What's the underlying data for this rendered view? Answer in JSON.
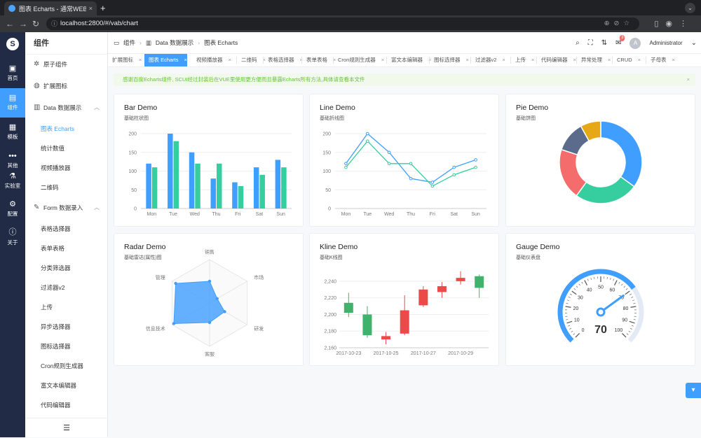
{
  "browser": {
    "tab_title": "图表 Echarts - 通常WEB管理",
    "tab_close": "×",
    "new_tab": "+",
    "url": "localhost:2800/#/vab/chart",
    "lock_icon": "site-info-icon"
  },
  "rail": {
    "logo": "S",
    "items": [
      {
        "label": "首页",
        "icon": "home-icon",
        "glyph": "▣"
      },
      {
        "label": "组件",
        "icon": "component-icon",
        "glyph": "▤"
      },
      {
        "label": "模板",
        "icon": "template-icon",
        "glyph": "▦"
      },
      {
        "label": "其他",
        "icon": "more-icon",
        "glyph": "•••"
      },
      {
        "label": "实验室",
        "icon": "lab-icon",
        "glyph": "⚗"
      },
      {
        "label": "配置",
        "icon": "settings-icon",
        "glyph": "⚙"
      },
      {
        "label": "关于",
        "icon": "info-icon",
        "glyph": "ⓘ"
      }
    ]
  },
  "sidebar": {
    "title": "组件",
    "items": [
      {
        "label": "原子组件",
        "glyph": "✲"
      },
      {
        "label": "扩展图标",
        "glyph": "◍"
      },
      {
        "label": "Data 数据展示",
        "glyph": "▥",
        "arrow": "︿"
      },
      {
        "label": "图表 Echarts"
      },
      {
        "label": "统计数值"
      },
      {
        "label": "视频播放器"
      },
      {
        "label": "二维码"
      },
      {
        "label": "Form 数据录入",
        "glyph": "✎",
        "arrow": "︿"
      },
      {
        "label": "表格选择器"
      },
      {
        "label": "表单表格"
      },
      {
        "label": "分类筛选器"
      },
      {
        "label": "过滤器v2"
      },
      {
        "label": "上传"
      },
      {
        "label": "异步选择器"
      },
      {
        "label": "图标选择器"
      },
      {
        "label": "Cron规则生成器"
      },
      {
        "label": "富文本编辑器"
      },
      {
        "label": "代码编辑器"
      }
    ],
    "collapse_glyph": "☰"
  },
  "breadcrumb": {
    "items": [
      "组件",
      "Data 数据展示",
      "图表 Echarts"
    ],
    "sep": "›",
    "glyphs": [
      "▭",
      "▥",
      ""
    ]
  },
  "header": {
    "user": "Administrator",
    "avatar": "A",
    "notify_count": "3",
    "dropdown": "⌄"
  },
  "tags": [
    "扩展图标",
    "图表 Echarts",
    "视频播放器",
    "二维码",
    "表格选择器",
    "表单表格",
    "Cron规则生成器",
    "富文本编辑器",
    "图标选择器",
    "过滤器v2",
    "上传",
    "代码编辑器",
    "异常处理",
    "CRUD",
    "子母表"
  ],
  "alert": {
    "text": "感谢百度Echarts组件, SCUI经过封装后在VUE里使用更方便而且暴露Echarts所有方法,具体请查看本文件",
    "close": "×"
  },
  "cards": {
    "bar": {
      "title": "Bar Demo",
      "subtitle": "基础柱状图"
    },
    "line": {
      "title": "Line Demo",
      "subtitle": "基础折线图"
    },
    "pie": {
      "title": "Pie Demo",
      "subtitle": "基础饼图"
    },
    "radar": {
      "title": "Radar Demo",
      "subtitle": "基础雷达(属性)图"
    },
    "kline": {
      "title": "Kline Demo",
      "subtitle": "基础K线图"
    },
    "gauge": {
      "title": "Gauge Demo",
      "subtitle": "基础仪表盘"
    }
  },
  "colors": {
    "blue": "#409eff",
    "green": "#36ce9e",
    "red": "#f56c6c",
    "primary": "#409eff",
    "rail": "#222b45",
    "up": "#ec4a4a",
    "down": "#3fb36b"
  },
  "chart_data": [
    {
      "type": "bar",
      "categories": [
        "Mon",
        "Tue",
        "Wed",
        "Thu",
        "Fri",
        "Sat",
        "Sun"
      ],
      "series": [
        {
          "values": [
            120,
            200,
            150,
            80,
            70,
            110,
            130
          ]
        },
        {
          "values": [
            110,
            180,
            120,
            120,
            60,
            90,
            110
          ]
        }
      ],
      "ylim": [
        0,
        200
      ],
      "yticks": [
        0,
        50,
        100,
        150,
        200
      ]
    },
    {
      "type": "line",
      "categories": [
        "Mon",
        "Tue",
        "Wed",
        "Thu",
        "Fri",
        "Sat",
        "Sun"
      ],
      "series": [
        {
          "values": [
            120,
            200,
            150,
            80,
            70,
            110,
            130
          ]
        },
        {
          "values": [
            110,
            180,
            120,
            120,
            60,
            90,
            110
          ]
        }
      ],
      "ylim": [
        0,
        200
      ],
      "yticks": [
        0,
        50,
        100,
        150,
        200
      ]
    },
    {
      "type": "pie",
      "donut": true,
      "slices": [
        {
          "value": 35,
          "color": "#409eff"
        },
        {
          "value": 25,
          "color": "#36ce9e"
        },
        {
          "value": 20,
          "color": "#f56c6c"
        },
        {
          "value": 12,
          "color": "#5b6b8c"
        },
        {
          "value": 8,
          "color": "#e6a817"
        }
      ]
    },
    {
      "type": "radar",
      "indicators": [
        "销售",
        "市场",
        "研发",
        "客服",
        "信息技术",
        "管理"
      ],
      "max": 100,
      "values": [
        50,
        20,
        40,
        45,
        95,
        90
      ]
    },
    {
      "type": "candlestick",
      "categories": [
        "2017-10-23",
        "2017-10-24",
        "2017-10-25",
        "2017-10-26",
        "2017-10-27",
        "2017-10-28",
        "2017-10-29",
        "2017-10-30"
      ],
      "xticks": [
        "2017-10-23",
        "2017-10-25",
        "2017-10-27",
        "2017-10-29"
      ],
      "ylim": [
        2160,
        2250
      ],
      "yticks": [
        2160,
        2180,
        2200,
        2220,
        2240
      ],
      "candles": [
        {
          "open": 2214,
          "close": 2202,
          "low": 2197,
          "high": 2226
        },
        {
          "open": 2200,
          "close": 2175,
          "low": 2172,
          "high": 2210
        },
        {
          "open": 2170,
          "close": 2174,
          "low": 2164,
          "high": 2179
        },
        {
          "open": 2177,
          "close": 2205,
          "low": 2175,
          "high": 2223
        },
        {
          "open": 2211,
          "close": 2230,
          "low": 2209,
          "high": 2234
        },
        {
          "open": 2227,
          "close": 2234,
          "low": 2220,
          "high": 2239
        },
        {
          "open": 2240,
          "close": 2244,
          "low": 2236,
          "high": 2252
        },
        {
          "open": 2246,
          "close": 2232,
          "low": 2220,
          "high": 2248
        }
      ]
    },
    {
      "type": "gauge",
      "min": 0,
      "max": 100,
      "value": 70,
      "ticks": [
        0,
        10,
        20,
        30,
        40,
        50,
        60,
        70,
        80,
        90,
        100
      ]
    }
  ]
}
